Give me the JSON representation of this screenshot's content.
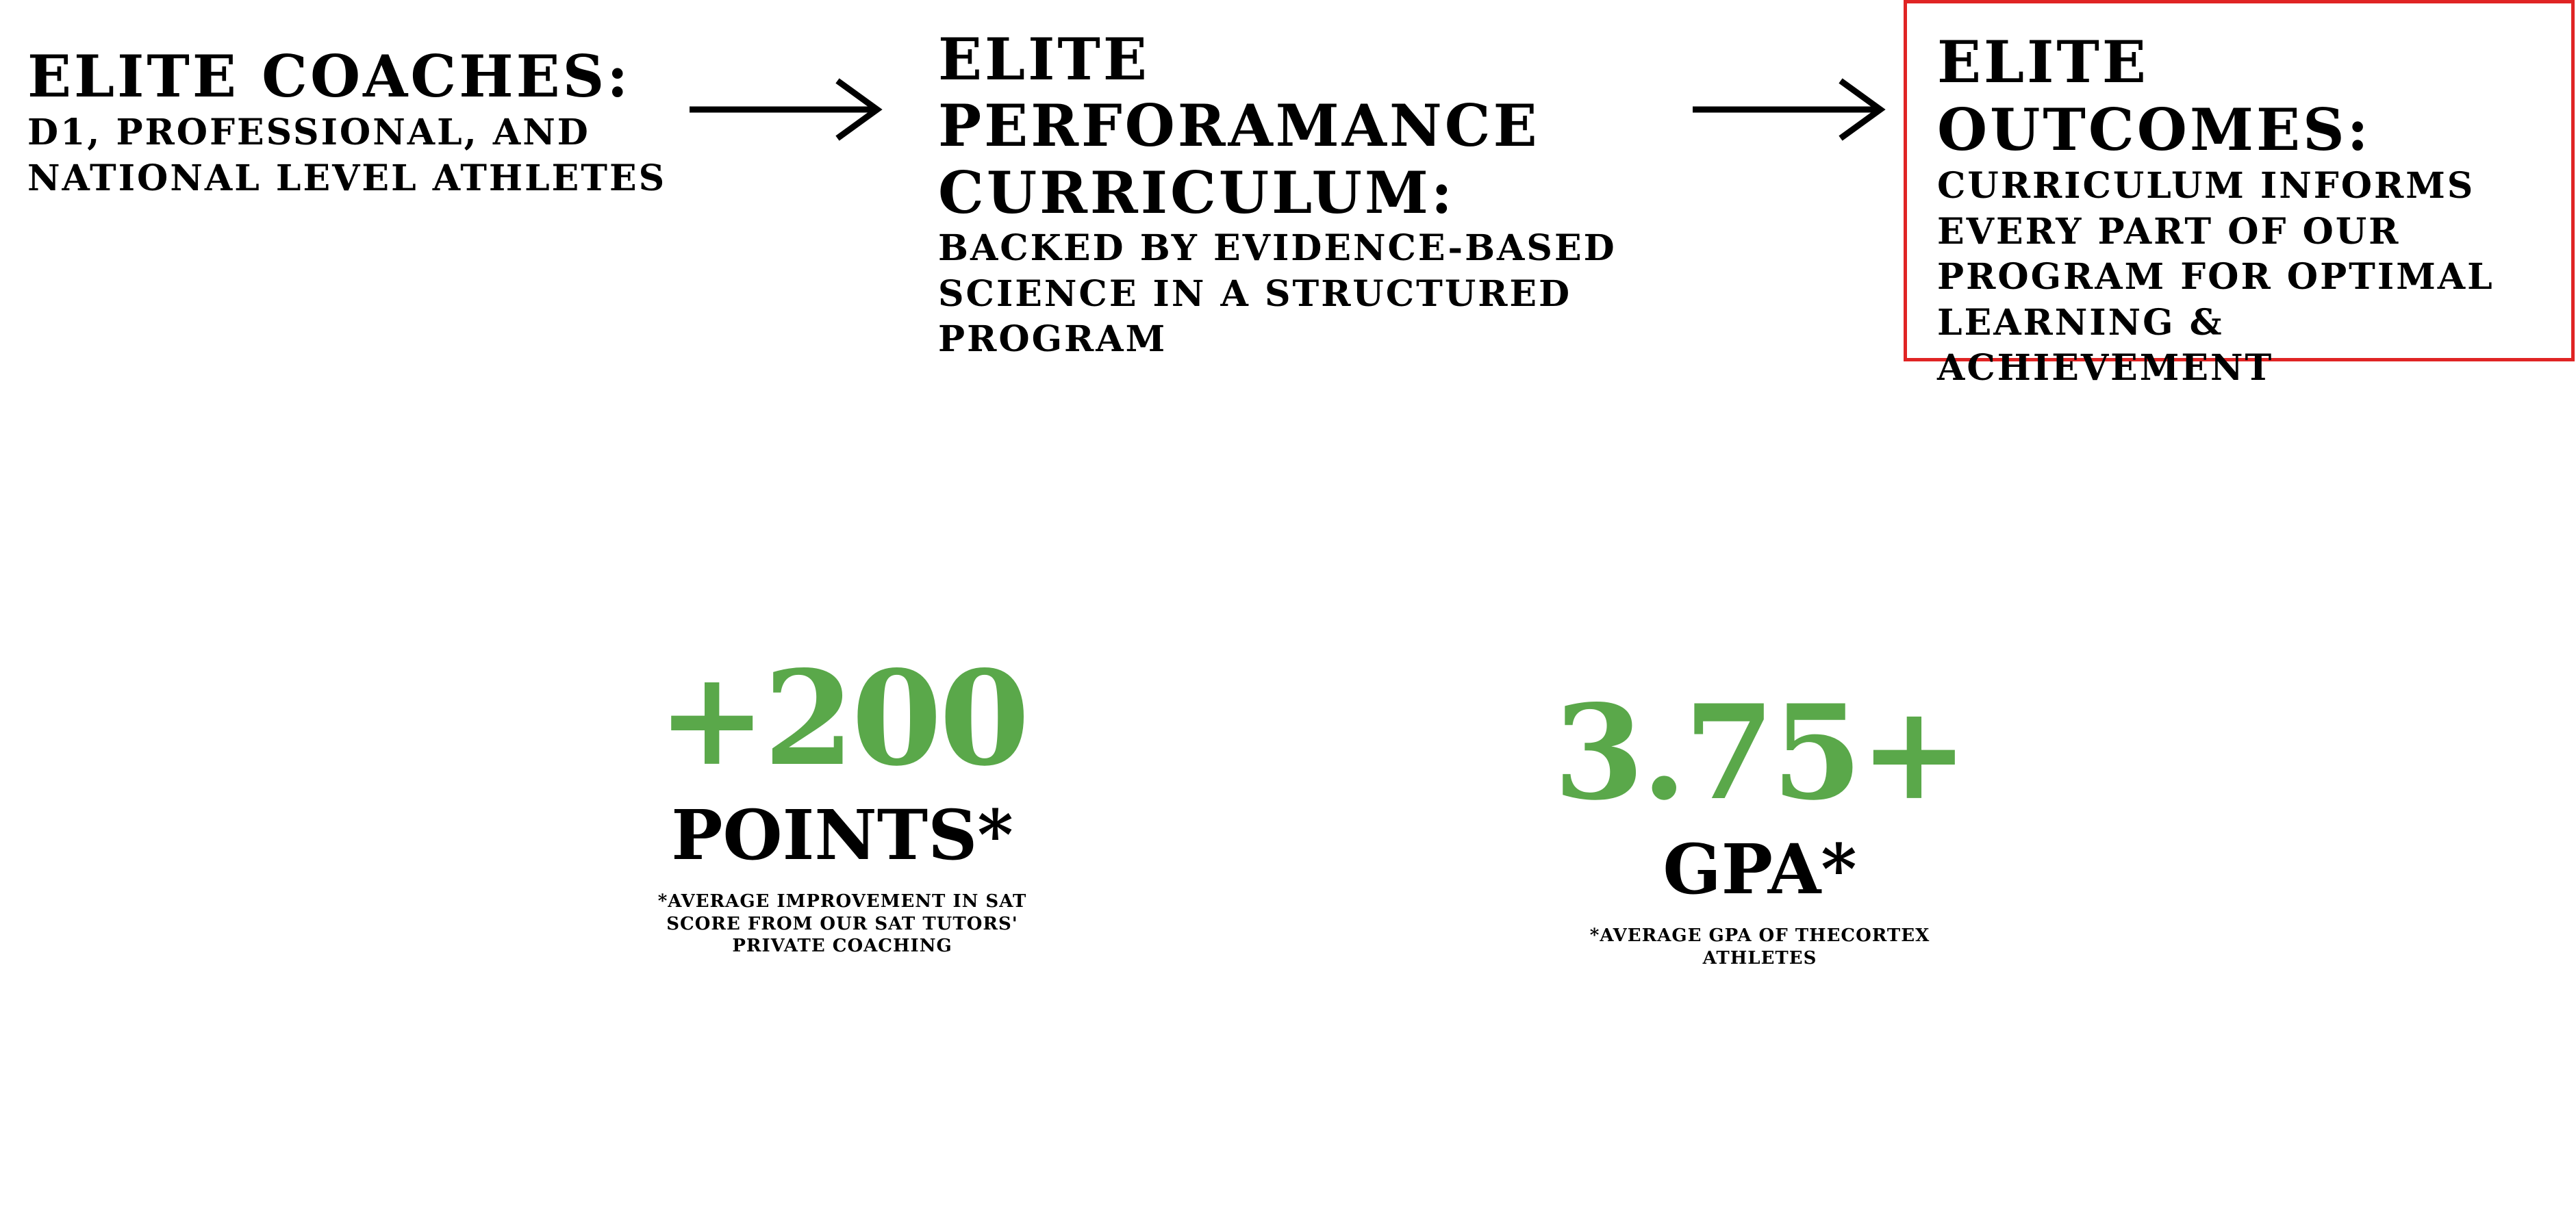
{
  "coaches": {
    "heading": "ELITE COACHES:",
    "body": "D1, PROFESSIONAL, AND NATIONAL LEVEL ATHLETES"
  },
  "curriculum": {
    "heading": "ELITE PERFORAMANCE CURRICULUM:",
    "body": "BACKED BY EVIDENCE-BASED SCIENCE IN A STRUCTURED PROGRAM"
  },
  "outcomes": {
    "heading": "ELITE OUTCOMES:",
    "body": "CURRICULUM INFORMS EVERY PART OF OUR PROGRAM FOR OPTIMAL LEARNING & ACHIEVEMENT",
    "border_color": "#e02424"
  },
  "arrows": [
    {
      "icon": "arrow-right-icon"
    },
    {
      "icon": "arrow-right-icon"
    }
  ],
  "stats": [
    {
      "value": "+200",
      "label": "POINTS*",
      "note": "*AVERAGE IMPROVEMENT IN SAT SCORE FROM OUR SAT TUTORS' PRIVATE COACHING"
    },
    {
      "value": "3.75+",
      "label": "GPA*",
      "note": "*AVERAGE GPA OF THECORTEX ATHLETES"
    }
  ],
  "colors": {
    "accent_green": "#5aa84a",
    "text": "#000000",
    "background": "#ffffff"
  }
}
